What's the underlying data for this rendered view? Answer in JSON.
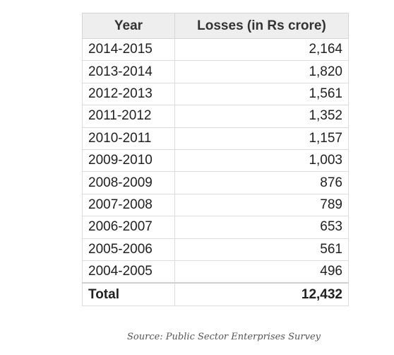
{
  "table": {
    "headers": [
      "Year",
      "Losses (in Rs crore)"
    ],
    "rows": [
      {
        "year": "2014-2015",
        "loss": "2,164"
      },
      {
        "year": "2013-2014",
        "loss": "1,820"
      },
      {
        "year": "2012-2013",
        "loss": "1,561"
      },
      {
        "year": "2011-2012",
        "loss": "1,352"
      },
      {
        "year": "2010-2011",
        "loss": "1,157"
      },
      {
        "year": "2009-2010",
        "loss": "1,003"
      },
      {
        "year": "2008-2009",
        "loss": "876"
      },
      {
        "year": "2007-2008",
        "loss": "789"
      },
      {
        "year": "2006-2007",
        "loss": "653"
      },
      {
        "year": "2005-2006",
        "loss": "561"
      },
      {
        "year": "2004-2005",
        "loss": "496"
      }
    ],
    "total": {
      "label": "Total",
      "value": "12,432"
    }
  },
  "source": "Source: Public Sector Enterprises Survey"
}
